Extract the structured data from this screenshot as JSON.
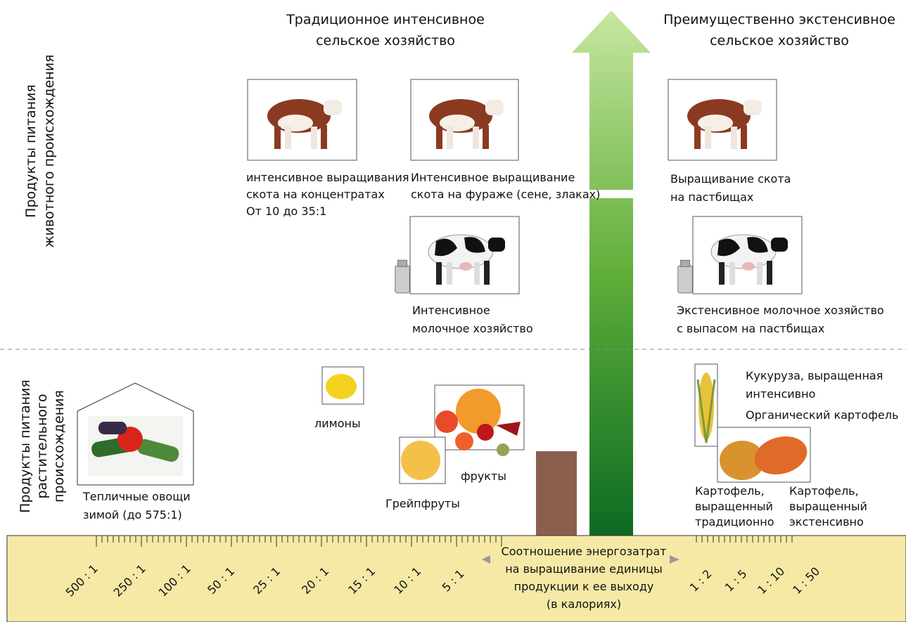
{
  "header": {
    "left_title": [
      "Традиционное интенсивное",
      "сельское хозяйство"
    ],
    "right_title": [
      "Преимущественно экстенсивное",
      "сельское хозяйство"
    ]
  },
  "side_labels": {
    "animal": [
      "Продукты питания",
      "животного происхождения"
    ],
    "plant": [
      "Продукты питания",
      "растительного",
      "происхождения"
    ]
  },
  "items": {
    "beef_concentrate": [
      "интенсивное выращивания",
      "скота на концентратах",
      "От 10 до 35:1"
    ],
    "beef_fodder": [
      "Интенсивное выращивание",
      "скота на фураже (сене, злаках)"
    ],
    "dairy_intensive": [
      "Интенсивное",
      "молочное хозяйство"
    ],
    "beef_pasture": [
      "Выращивание скота",
      "на пастбищах"
    ],
    "dairy_extensive": [
      "Экстенсивное молочное хозяйство",
      "с выпасом на пастбищах"
    ],
    "greenhouse": [
      "Тепличные овощи",
      "зимой (до 575:1)"
    ],
    "lemons": "лимоны",
    "fruits": "фрукты",
    "grapefruit": "Грейпфруты",
    "corn": [
      "Кукуруза, выращенная",
      "интенсивно"
    ],
    "organic_potato": "Органический картофель",
    "potato_traditional": [
      "Картофель,",
      "выращенный",
      "традиционно"
    ],
    "potato_extensive": [
      "Картофель,",
      "выращенный",
      "экстенсивно"
    ]
  },
  "scale": {
    "labels": [
      "500 : 1",
      "250 : 1",
      "100 : 1",
      "50 : 1",
      "25 : 1",
      "20 : 1",
      "15 : 1",
      "10 : 1",
      "5 : 1",
      "1 : 2",
      "1 : 5",
      "1 : 10",
      "1 : 50"
    ],
    "caption": [
      "Соотношение энергозатрат",
      "на выращивание единицы",
      "продукции к ее выходу",
      "(в калориях)"
    ]
  }
}
